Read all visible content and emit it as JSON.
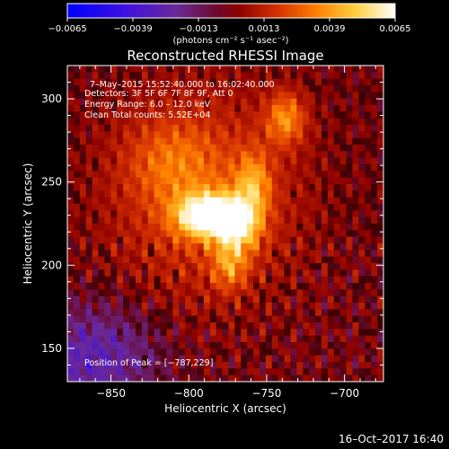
{
  "chart_data": {
    "type": "heatmap",
    "title": "Reconstructed RHESSI Image",
    "xlabel": "Heliocentric X (arcsec)",
    "ylabel": "Heliocentric Y (arcsec)",
    "xlim": [
      -878,
      -675
    ],
    "ylim": [
      130,
      320
    ],
    "xticks": [
      {
        "value": -850,
        "label": "−850"
      },
      {
        "value": -800,
        "label": "−800"
      },
      {
        "value": -750,
        "label": "−750"
      },
      {
        "value": -700,
        "label": "−700"
      }
    ],
    "yticks": [
      {
        "value": 150,
        "label": "150"
      },
      {
        "value": 200,
        "label": "200"
      },
      {
        "value": 250,
        "label": "250"
      },
      {
        "value": 300,
        "label": "300"
      }
    ],
    "colorbar": {
      "min": -0.0065,
      "max": 0.0065,
      "unit_label": "(photons cm⁻² s⁻¹ asec⁻²)",
      "ticks": [
        {
          "value": -0.0065,
          "label": "−0.0065"
        },
        {
          "value": -0.0039,
          "label": "−0.0039"
        },
        {
          "value": -0.0013,
          "label": "−0.0013"
        },
        {
          "value": 0.0013,
          "label": "0.0013"
        },
        {
          "value": 0.0039,
          "label": "0.0039"
        },
        {
          "value": 0.0065,
          "label": "0.0065"
        }
      ]
    },
    "annotations": [
      "7–May–2015 15:52:40.000 to 16:02:40.000",
      "Detectors: 3F 5F 6F 7F 8F 9F, Att 0",
      "Energy Range: 6.0 – 12.0 keV",
      "Clean    Total counts: 5.52E+04",
      "Position of Peak = [−787,229]"
    ],
    "peak": {
      "x": -787,
      "y": 229
    },
    "sources": [
      {
        "x": -787,
        "y": 229,
        "amp": 0.0065,
        "sx": 14,
        "sy": 9
      },
      {
        "x": -768,
        "y": 222,
        "amp": 0.004,
        "sx": 10,
        "sy": 11
      },
      {
        "x": -758,
        "y": 247,
        "amp": 0.003,
        "sx": 8,
        "sy": 14
      },
      {
        "x": -737,
        "y": 288,
        "amp": 0.0032,
        "sx": 9,
        "sy": 11
      },
      {
        "x": -773,
        "y": 198,
        "amp": 0.0026,
        "sx": 8,
        "sy": 10
      },
      {
        "x": -812,
        "y": 262,
        "amp": 0.0016,
        "sx": 20,
        "sy": 18
      },
      {
        "x": -790,
        "y": 240,
        "amp": 0.0022,
        "sx": 42,
        "sy": 44
      }
    ],
    "negative_regions": [
      {
        "x": -862,
        "y": 143,
        "amp": -0.0028,
        "sx": 30,
        "sy": 22
      }
    ],
    "grid": false
  },
  "footer": {
    "date": "16–Oct–2017 16:40"
  }
}
